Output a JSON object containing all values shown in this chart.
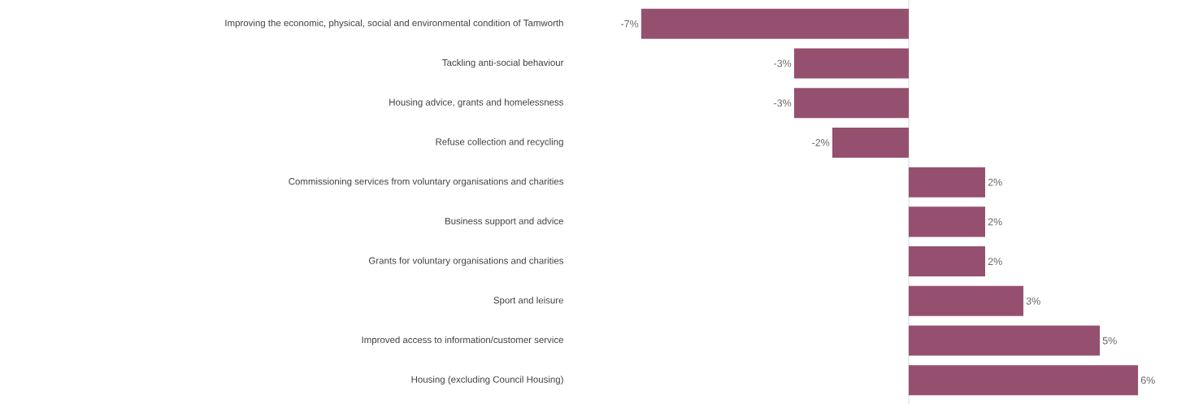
{
  "chart_data": {
    "type": "bar",
    "orientation": "horizontal",
    "color": "#96506f",
    "categories": [
      "Improving the economic, physical, social and environmental condition of Tamworth",
      "Tackling anti-social behaviour",
      "Housing advice, grants and homelessness",
      "Refuse collection and recycling",
      "Commissioning services from voluntary organisations and charities",
      "Business support and advice",
      "Grants for voluntary organisations and charities",
      "Sport and leisure",
      "Improved access to information/customer service",
      "Housing (excluding Council Housing)"
    ],
    "values": [
      -7,
      -3,
      -3,
      -2,
      2,
      2,
      2,
      3,
      5,
      6
    ],
    "value_labels": [
      "-7%",
      "-3%",
      "-3%",
      "-2%",
      "2%",
      "2%",
      "2%",
      "3%",
      "5%",
      "6%"
    ]
  }
}
